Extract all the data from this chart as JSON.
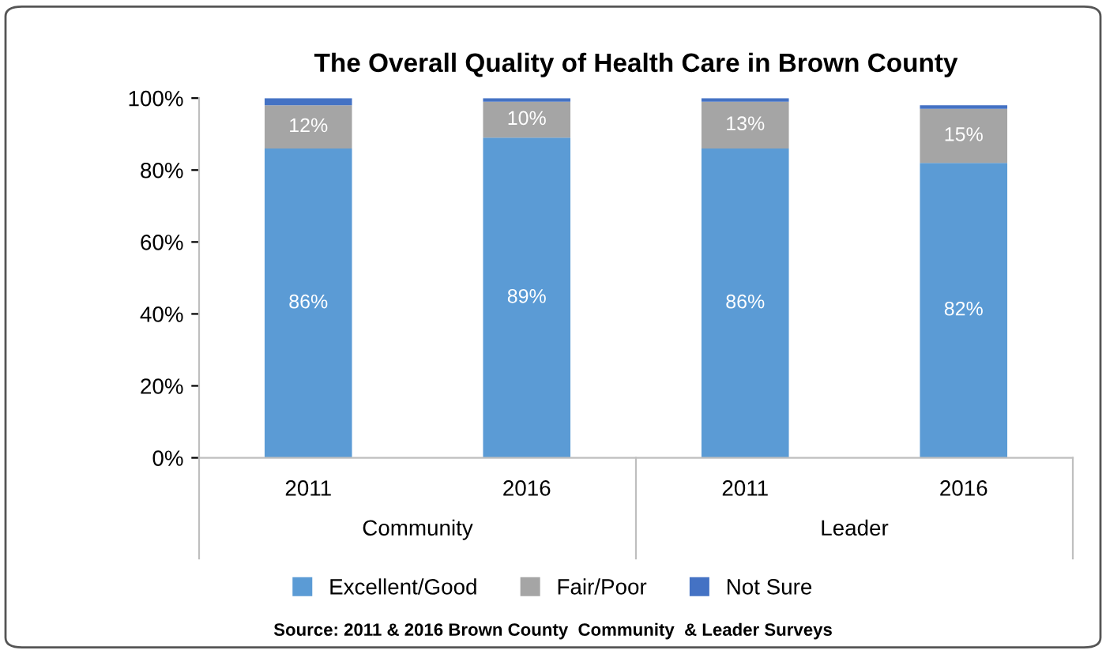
{
  "chart_data": {
    "type": "bar",
    "stacked": true,
    "title": "The Overall Quality of Health Care in Brown County",
    "categories": [
      "2011",
      "2016",
      "2011",
      "2016"
    ],
    "series": [
      {
        "name": "Excellent/Good",
        "color": "#5b9bd5",
        "values": [
          86,
          89,
          86,
          82
        ],
        "value_labels": [
          "86%",
          "89%",
          "86%",
          "82%"
        ]
      },
      {
        "name": "Fair/Poor",
        "color": "#a5a5a5",
        "values": [
          12,
          10,
          13,
          15
        ],
        "value_labels": [
          "12%",
          "10%",
          "13%",
          "15%"
        ]
      },
      {
        "name": "Not Sure",
        "color": "#4472c4",
        "values": [
          2,
          1,
          1,
          1
        ]
      }
    ],
    "ylim": [
      0,
      100
    ],
    "yticks": [
      {
        "value": 0,
        "label": "0%"
      },
      {
        "value": 20,
        "label": "20%"
      },
      {
        "value": 40,
        "label": "40%"
      },
      {
        "value": 60,
        "label": "60%"
      },
      {
        "value": 80,
        "label": "80%"
      },
      {
        "value": 100,
        "label": "100%"
      }
    ],
    "grid": false,
    "legend": "bottom",
    "annotations": [
      "Community",
      "Leader",
      "Source: 2011 & 2016 Brown County  Community  & Leader Surveys"
    ]
  }
}
